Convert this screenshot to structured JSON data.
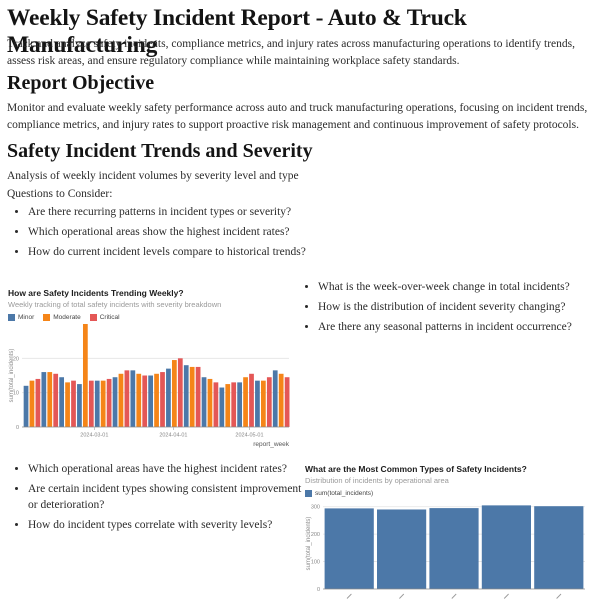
{
  "header": {
    "title": "Weekly Safety Incident Report - Auto & Truck Manufacturing",
    "description": "Track and analyze safety incidents, compliance metrics, and injury rates across manufacturing operations to identify trends, assess risk areas, and ensure regulatory compliance while maintaining workplace safety standards."
  },
  "objective": {
    "heading": "Report Objective",
    "body": "Monitor and evaluate weekly safety performance across auto and truck manufacturing operations, focusing on incident trends, compliance metrics, and injury rates to support proactive risk management and continuous improvement of safety protocols."
  },
  "trends": {
    "heading": "Safety Incident Trends and Severity",
    "intro": "Analysis of weekly incident volumes by severity level and type",
    "questions_label": "Questions to Consider:"
  },
  "questions": {
    "left": [
      "Are there recurring patterns in incident types or severity?",
      "Which operational areas show the highest incident rates?",
      "How do current incident levels compare to historical trends?"
    ],
    "right": [
      "What is the week-over-week change in total incidents?",
      "How is the distribution of incident severity changing?",
      "Are there any seasonal patterns in incident occurrence?"
    ],
    "bottom": [
      "Which operational areas have the highest incident rates?",
      "Are certain incident types showing consistent improvement or deterioration?",
      "How do incident types correlate with severity levels?"
    ]
  },
  "chart_data": [
    {
      "type": "bar",
      "title": "How are Safety Incidents Trending Weekly?",
      "subtitle": "Weekly tracking of total safety incidents with severity breakdown",
      "xlabel": "report_week",
      "ylabel": "sum(total_incidents)",
      "legend": [
        "Minor",
        "Moderate",
        "Critical"
      ],
      "colors": [
        "#4c78a8",
        "#f58518",
        "#e45756"
      ],
      "ylim": [
        0,
        30
      ],
      "yticks": [
        0,
        10,
        20
      ],
      "grid": true,
      "legend_position": "top-left",
      "xticks": [
        {
          "label": "2024-03-01",
          "pos": 0.271
        },
        {
          "label": "2024-04-01",
          "pos": 0.567
        },
        {
          "label": "2024-05-01",
          "pos": 0.852
        }
      ],
      "categories": [
        "2024-02-05",
        "2024-02-12",
        "2024-02-19",
        "2024-02-26",
        "2024-03-04",
        "2024-03-11",
        "2024-03-18",
        "2024-03-25",
        "2024-04-01",
        "2024-04-08",
        "2024-04-15",
        "2024-04-22",
        "2024-04-29",
        "2024-05-06",
        "2024-05-13"
      ],
      "series": [
        {
          "name": "Minor",
          "values": [
            12,
            16,
            14.5,
            12.5,
            13.5,
            14.5,
            16.5,
            15,
            17,
            18,
            14.5,
            11.5,
            13,
            13.5,
            16.5
          ]
        },
        {
          "name": "Moderate",
          "values": [
            13.5,
            16,
            13,
            30,
            13.5,
            15.5,
            15.5,
            15.5,
            19.5,
            17.5,
            14,
            12.5,
            14.5,
            13.5,
            15.5
          ]
        },
        {
          "name": "Critical",
          "values": [
            14,
            15.5,
            13.5,
            13.5,
            14,
            16.5,
            15,
            16,
            20,
            17.5,
            13,
            13,
            15.5,
            14.5,
            14.5
          ]
        }
      ]
    },
    {
      "type": "bar",
      "title": "What are the Most Common Types of Safety Incidents?",
      "subtitle": "Distribution of incidents by operational area",
      "xlabel": "",
      "ylabel": "sum(total_incidents)",
      "legend": [
        "sum(total_incidents)"
      ],
      "colors": [
        "#4c78a8"
      ],
      "ylim": [
        0,
        310
      ],
      "yticks": [
        0,
        100,
        200,
        300
      ],
      "grid": true,
      "legend_position": "top-left",
      "xtick_labels_clipped": true,
      "categories": [
        "",
        "",
        "",
        "",
        ""
      ],
      "values": [
        294,
        290,
        295,
        305,
        302
      ]
    }
  ]
}
